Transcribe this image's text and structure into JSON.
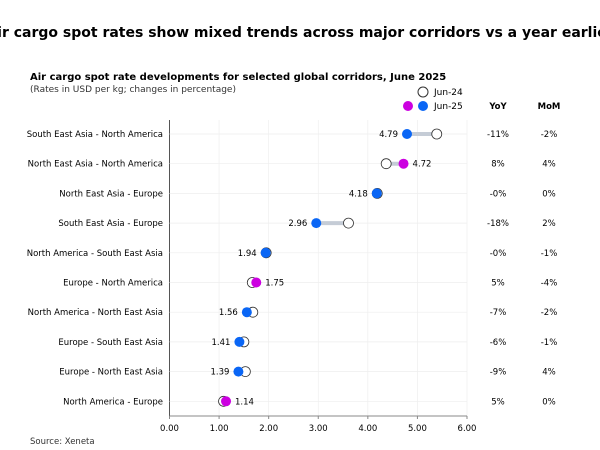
{
  "headline": "Air cargo spot rates show mixed trends across major corridors vs a year earlier",
  "chart_data": {
    "type": "dumbbell",
    "title": "Air cargo spot rate developments for selected global corridors, June 2025",
    "subtitle": "(Rates in USD per kg; changes in percentage)",
    "legend": {
      "prev": "Jun-24",
      "curr": "Jun-25",
      "placement": "top-right"
    },
    "column_headers": {
      "yoy": "YoY",
      "mom": "MoM"
    },
    "xlim": [
      0,
      6
    ],
    "x_ticks": [
      "0.00",
      "1.00",
      "2.00",
      "3.00",
      "4.00",
      "5.00",
      "6.00"
    ],
    "grid": true,
    "colors": {
      "increase": "#cc00e0",
      "decrease": "#0a66f5",
      "connector": "#c5ccd6"
    },
    "rows": [
      {
        "corridor": "South East Asia - North America",
        "jun24": 5.39,
        "jun25": 4.79,
        "label": "4.79",
        "yoy": "-11%",
        "mom": "-2%"
      },
      {
        "corridor": "North East Asia - North America",
        "jun24": 4.37,
        "jun25": 4.72,
        "label": "4.72",
        "yoy": "8%",
        "mom": "4%"
      },
      {
        "corridor": "North East Asia - Europe",
        "jun24": 4.19,
        "jun25": 4.18,
        "label": "4.18",
        "yoy": "-0%",
        "mom": "0%"
      },
      {
        "corridor": "South East Asia - Europe",
        "jun24": 3.61,
        "jun25": 2.96,
        "label": "2.96",
        "yoy": "-18%",
        "mom": "2%"
      },
      {
        "corridor": "North America - South East Asia",
        "jun24": 1.95,
        "jun25": 1.94,
        "label": "1.94",
        "yoy": "-0%",
        "mom": "-1%"
      },
      {
        "corridor": "Europe - North America",
        "jun24": 1.67,
        "jun25": 1.75,
        "label": "1.75",
        "yoy": "5%",
        "mom": "-4%"
      },
      {
        "corridor": "North America - North East Asia",
        "jun24": 1.68,
        "jun25": 1.56,
        "label": "1.56",
        "yoy": "-7%",
        "mom": "-2%"
      },
      {
        "corridor": "Europe - South East Asia",
        "jun24": 1.5,
        "jun25": 1.41,
        "label": "1.41",
        "yoy": "-6%",
        "mom": "-1%"
      },
      {
        "corridor": "Europe - North East Asia",
        "jun24": 1.53,
        "jun25": 1.39,
        "label": "1.39",
        "yoy": "-9%",
        "mom": "4%"
      },
      {
        "corridor": "North America - Europe",
        "jun24": 1.09,
        "jun25": 1.14,
        "label": "1.14",
        "yoy": "5%",
        "mom": "0%"
      }
    ],
    "source": "Source: Xeneta"
  }
}
